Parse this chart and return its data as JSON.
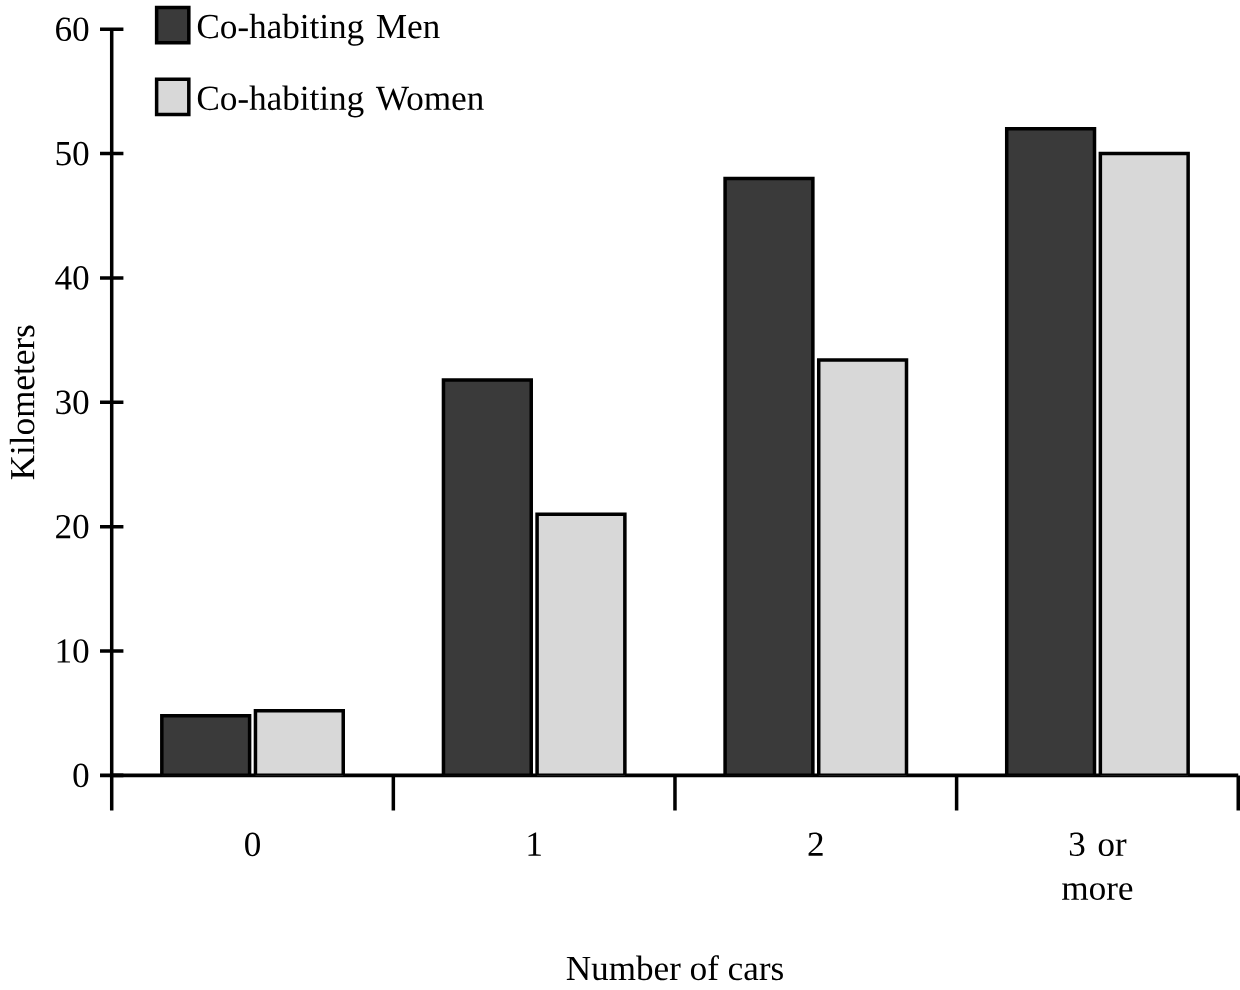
{
  "chart_data": {
    "type": "bar",
    "xlabel": "Number of cars",
    "ylabel": "Kilometers",
    "categories": [
      "0",
      "1",
      "2",
      "3 or more"
    ],
    "series": [
      {
        "name": "Co-habiting Men",
        "color": "#3a3a3a",
        "values": [
          4.8,
          31.8,
          48,
          52
        ]
      },
      {
        "name": "Co-habiting Women",
        "color": "#d8d8d8",
        "values": [
          5.2,
          21,
          33.4,
          50
        ]
      }
    ],
    "ylim": [
      0,
      60
    ],
    "yticks": [
      0,
      10,
      20,
      30,
      40,
      50,
      60
    ],
    "legend": "top left"
  }
}
